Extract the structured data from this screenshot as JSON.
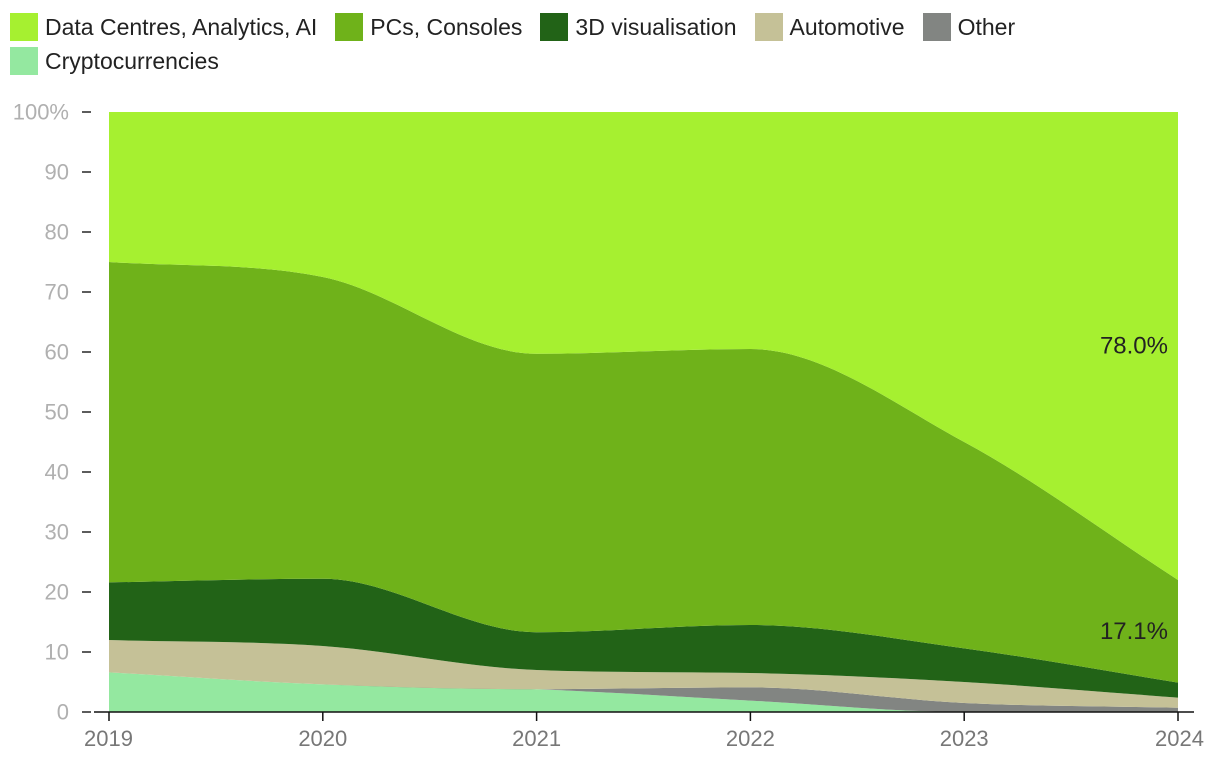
{
  "chart_data": {
    "type": "area",
    "stacked": true,
    "x": [
      "2019",
      "2020",
      "2021",
      "2022",
      "2023",
      "2024"
    ],
    "ylim": [
      0,
      100
    ],
    "yticks": [
      0,
      10,
      20,
      30,
      40,
      50,
      60,
      70,
      80,
      90,
      100
    ],
    "ytick_labels": [
      "0",
      "10",
      "20",
      "30",
      "40",
      "50",
      "60",
      "70",
      "80",
      "90",
      "100%"
    ],
    "grid": false,
    "legend_position": "top-left",
    "series": [
      {
        "name": "Cryptocurrencies",
        "color": "#94e8a0",
        "values": [
          6.6,
          4.6,
          3.8,
          1.9,
          0.0,
          0.0
        ]
      },
      {
        "name": "Other",
        "color": "#828582",
        "values": [
          0.0,
          0.0,
          0.0,
          2.2,
          1.5,
          0.7
        ]
      },
      {
        "name": "Automotive",
        "color": "#c5c197",
        "values": [
          5.4,
          6.4,
          3.2,
          2.4,
          3.5,
          1.7
        ]
      },
      {
        "name": "3D visualisation",
        "color": "#226317",
        "values": [
          9.6,
          11.2,
          6.3,
          8.0,
          5.6,
          2.5
        ]
      },
      {
        "name": "PCs, Consoles",
        "color": "#6fb21a",
        "values": [
          53.4,
          50.3,
          46.4,
          46.0,
          34.4,
          17.1
        ]
      },
      {
        "name": "Data Centres, Analytics, AI",
        "color": "#a6f030",
        "values": [
          25.0,
          27.5,
          40.3,
          39.5,
          55.0,
          78.0
        ]
      }
    ],
    "legend_order": [
      "Data Centres, Analytics, AI",
      "PCs, Consoles",
      "3D visualisation",
      "Automotive",
      "Other",
      "Cryptocurrencies"
    ],
    "annotations": [
      {
        "series": "Data Centres, Analytics, AI",
        "x": "2024",
        "text": "78.0%"
      },
      {
        "series": "PCs, Consoles",
        "x": "2024",
        "text": "17.1%"
      }
    ]
  }
}
